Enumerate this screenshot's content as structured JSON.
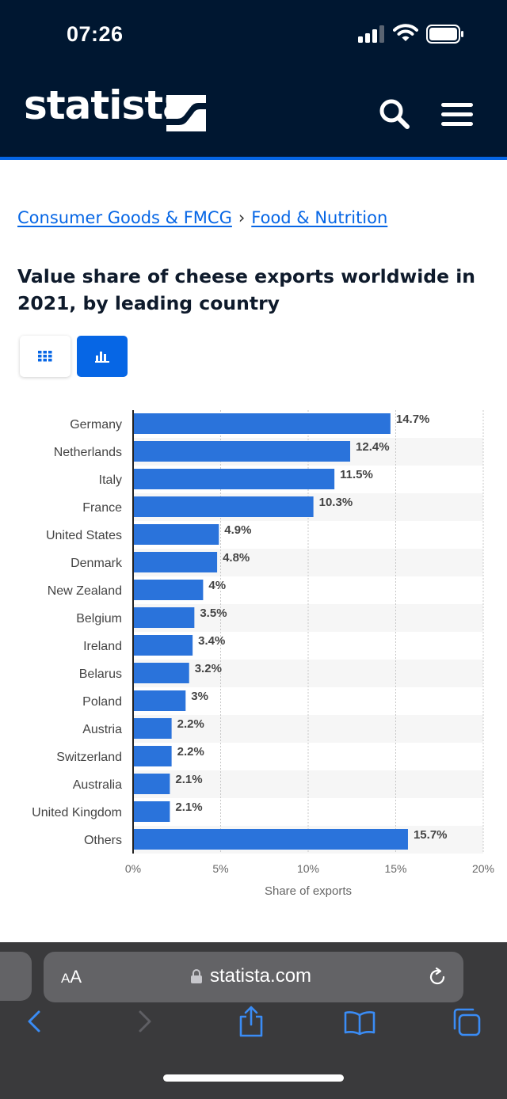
{
  "status_bar": {
    "time": "07:26"
  },
  "header": {
    "logo": "statista"
  },
  "breadcrumb": {
    "items": [
      "Consumer Goods & FMCG",
      "Food & Nutrition"
    ],
    "separator": "›"
  },
  "title": "Value share of cheese exports worldwide in 2021, by leading country",
  "view_toggle": {
    "table_icon": "grid-icon",
    "chart_icon": "bar-chart-icon",
    "active": "chart"
  },
  "chart_data": {
    "type": "bar",
    "orientation": "horizontal",
    "categories": [
      "Germany",
      "Netherlands",
      "Italy",
      "France",
      "United States",
      "Denmark",
      "New Zealand",
      "Belgium",
      "Ireland",
      "Belarus",
      "Poland",
      "Austria",
      "Switzerland",
      "Australia",
      "United Kingdom",
      "Others"
    ],
    "values": [
      14.7,
      12.4,
      11.5,
      10.3,
      4.9,
      4.8,
      4,
      3.5,
      3.4,
      3.2,
      3,
      2.2,
      2.2,
      2.1,
      2.1,
      15.7
    ],
    "value_labels": [
      "14.7%",
      "12.4%",
      "11.5%",
      "10.3%",
      "4.9%",
      "4.8%",
      "4%",
      "3.5%",
      "3.4%",
      "3.2%",
      "3%",
      "2.2%",
      "2.2%",
      "2.1%",
      "2.1%",
      "15.7%"
    ],
    "xlabel": "Share of exports",
    "xlim": [
      0,
      20
    ],
    "x_ticks": [
      "0%",
      "5%",
      "10%",
      "15%",
      "20%"
    ],
    "bar_color": "#2a73db",
    "grid": true
  },
  "browser": {
    "aa_label_big": "A",
    "aa_label_small": "A",
    "domain": "statista.com"
  },
  "colors": {
    "header_bg": "#001731",
    "accent": "#0666e5"
  }
}
